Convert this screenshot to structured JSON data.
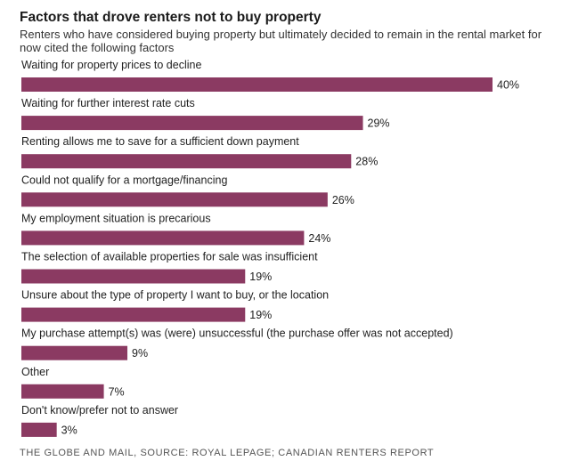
{
  "chart_data": {
    "type": "bar",
    "orientation": "horizontal",
    "title": "Factors that drove renters not to buy property",
    "subtitle": "Renters who have considered buying property but ultimately decided to remain in the rental market for now cited the following factors",
    "categories": [
      "Waiting for property prices to decline",
      "Waiting for further interest rate cuts",
      "Renting allows me to save for a sufficient down payment",
      "Could not qualify for a mortgage/financing",
      "My employment situation is precarious",
      "The selection of available properties for sale was insufficient",
      "Unsure about the type of property I want to buy, or the location",
      "My purchase attempt(s) was (were) unsuccessful (the purchase offer was not accepted)",
      "Other",
      "Don't know/prefer not to answer"
    ],
    "values": [
      40,
      29,
      28,
      26,
      24,
      19,
      19,
      9,
      7,
      3
    ],
    "value_labels": [
      "40%",
      "29%",
      "28%",
      "26%",
      "24%",
      "19%",
      "19%",
      "9%",
      "7%",
      "3%"
    ],
    "xlim": [
      0,
      40
    ],
    "grid": false,
    "bar_color": "#8b3a62",
    "source": "THE GLOBE AND MAIL, SOURCE: ROYAL LEPAGE; CANADIAN RENTERS REPORT"
  }
}
